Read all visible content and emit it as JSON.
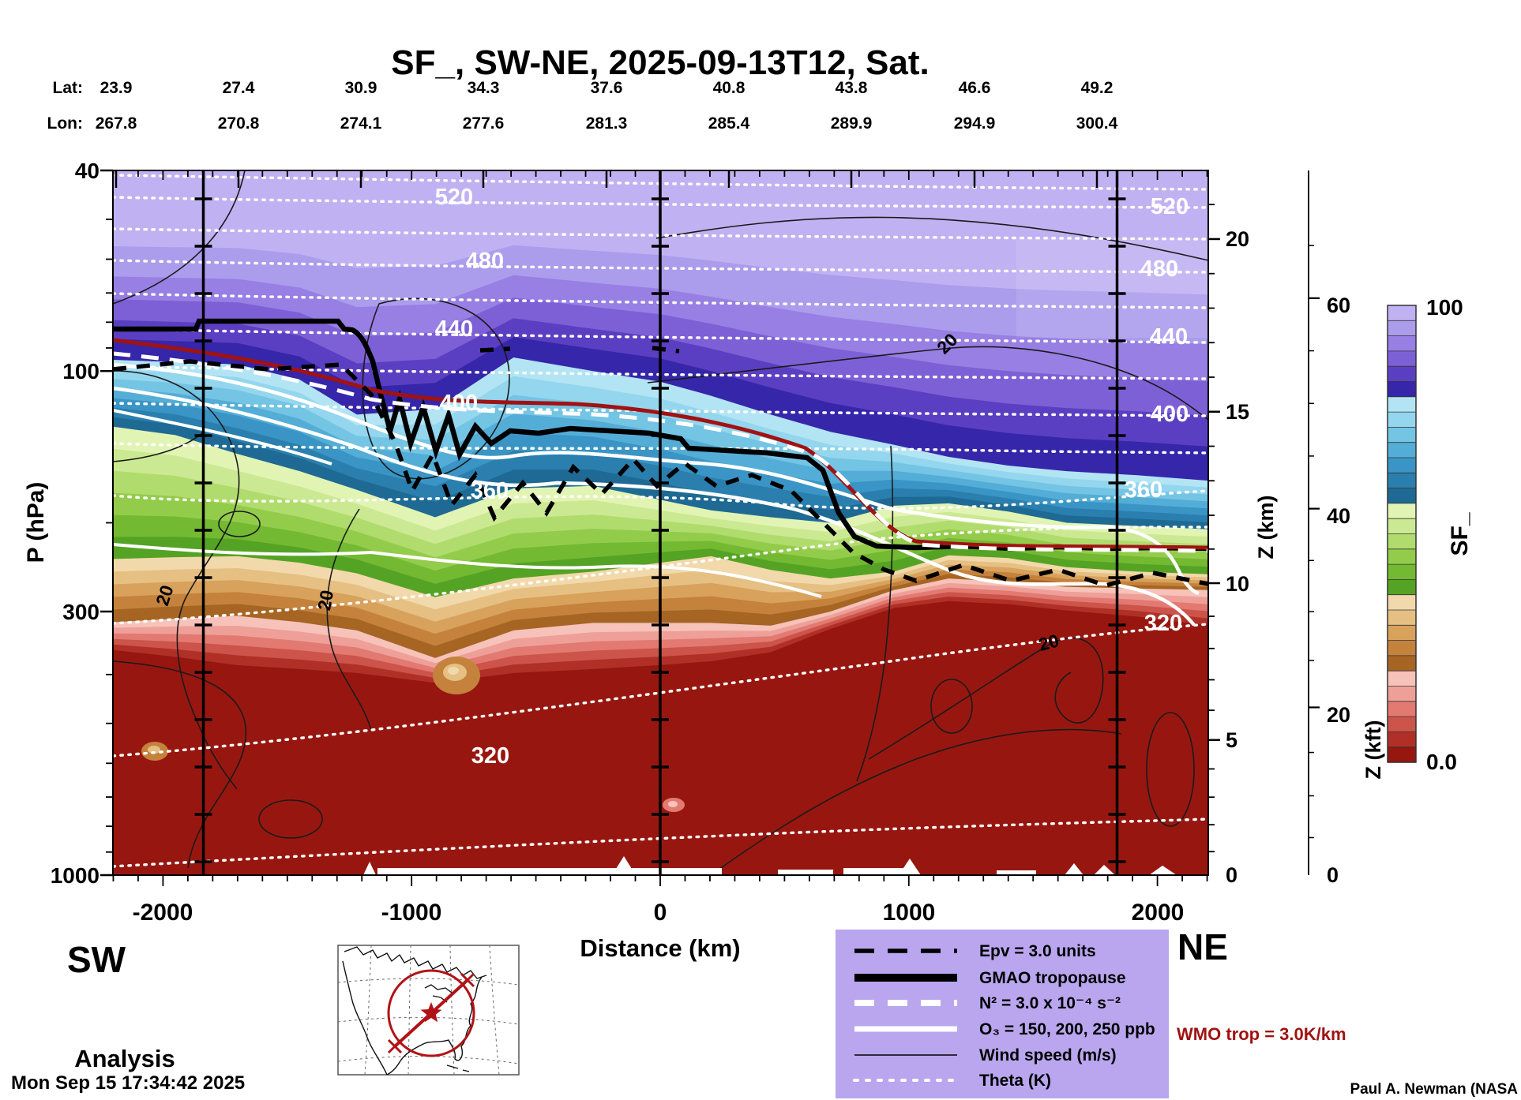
{
  "header": {
    "title": "SF_, SW-NE, 2025-09-13T12, Sat.",
    "lat_label": "Lat:",
    "lon_label": "Lon:",
    "lat": [
      "23.9",
      "27.4",
      "30.9",
      "34.3",
      "37.6",
      "40.8",
      "43.8",
      "46.6",
      "49.2"
    ],
    "lon": [
      "267.8",
      "270.8",
      "274.1",
      "277.6",
      "281.3",
      "285.4",
      "289.9",
      "294.9",
      "300.4"
    ]
  },
  "axes": {
    "pressure": {
      "label": "P (hPa)",
      "ticks": [
        "40",
        "100",
        "300",
        "1000"
      ]
    },
    "distance": {
      "label": "Distance (km)",
      "ticks": [
        "-2000",
        "-1000",
        "0",
        "1000",
        "2000"
      ]
    },
    "z_km": {
      "label": "Z (km)",
      "ticks": [
        "20",
        "15",
        "10",
        "5",
        "0"
      ]
    },
    "z_kft": {
      "label": "Z (kft)",
      "ticks": [
        "60",
        "40",
        "20",
        "0"
      ]
    }
  },
  "colorbar": {
    "label": "SF_",
    "max_label": "100",
    "min_label": "0.0",
    "colors": [
      "#c0b2f2",
      "#ac9cec",
      "#977fe4",
      "#7e60d6",
      "#5b3fc2",
      "#3626aa",
      "#b2e4f4",
      "#93d6ee",
      "#74c4e4",
      "#54add6",
      "#3a95c6",
      "#2a7fae",
      "#1e6a94",
      "#e2f4b4",
      "#cbe992",
      "#b0dc6e",
      "#93cc4b",
      "#73b932",
      "#55a324",
      "#f2d9ac",
      "#e6c083",
      "#d8a25c",
      "#c4823c",
      "#a66523",
      "#f6c2ba",
      "#eea098",
      "#e27a72",
      "#cc544a",
      "#b03028",
      "#971710"
    ]
  },
  "legend": {
    "items": [
      {
        "label": "Epv = 3.0 units"
      },
      {
        "label": "GMAO tropopause"
      },
      {
        "label": "N² = 3.0 x 10⁻⁴ s⁻²"
      },
      {
        "label": "O₃ = 150, 200, 250 ppb"
      },
      {
        "label": "Wind speed (m/s)"
      },
      {
        "label": "Theta (K)"
      }
    ]
  },
  "annotations": {
    "sw": "SW",
    "ne": "NE",
    "analysis": "Analysis",
    "wmo_trop": "WMO trop = 3.0K/km",
    "timestamp": "Mon Sep 15 17:34:42 2025",
    "credit": "Paul A. Newman (NASA"
  },
  "contour_labels": {
    "theta_left": [
      "520",
      "480",
      "440",
      "400",
      "360",
      "320"
    ],
    "theta_right": [
      "520",
      "480",
      "440",
      "400",
      "360",
      "320"
    ],
    "wind": [
      "20",
      "20",
      "20",
      "20"
    ]
  },
  "chart_data": {
    "type": "heatmap",
    "title": "SF_, SW-NE, 2025-09-13T12, Sat.",
    "field": "SF_",
    "run_type": "Analysis",
    "valid_time": "2025-09-13T12",
    "orientation": {
      "left": "SW",
      "right": "NE"
    },
    "x": {
      "label": "Distance (km)",
      "min": -2200,
      "max": 2205,
      "ticks": [
        -2000,
        -1000,
        0,
        1000,
        2000
      ],
      "waypoint_lines_km": [
        -1838,
        0,
        1838
      ]
    },
    "y": {
      "label": "P (hPa)",
      "scale": "log",
      "min": 40,
      "max": 1000,
      "ticks": [
        40,
        100,
        300,
        1000
      ]
    },
    "y2": {
      "label": "Z (km)",
      "ticks": [
        20,
        15,
        10,
        5,
        0
      ]
    },
    "y3": {
      "label": "Z (kft)",
      "ticks": [
        60,
        40,
        20,
        0
      ]
    },
    "colorbar": {
      "label": "SF_",
      "min": 0.0,
      "max": 100
    },
    "track": {
      "lat": [
        23.9,
        27.4,
        30.9,
        34.3,
        37.6,
        40.8,
        43.8,
        46.6,
        49.2
      ],
      "lon": [
        267.8,
        270.8,
        274.1,
        277.6,
        281.3,
        285.4,
        289.9,
        294.9,
        300.4
      ]
    },
    "overlays": [
      {
        "name": "Theta (K)",
        "style": "white dotted",
        "levels_labeled": [
          320,
          360,
          400,
          440,
          480,
          520
        ],
        "levels_drawn": [
          310,
          320,
          340,
          360,
          380,
          400,
          420,
          440,
          460,
          480,
          500,
          520,
          540
        ]
      },
      {
        "name": "Wind speed (m/s)",
        "style": "thin black solid",
        "levels_labeled": [
          20
        ]
      },
      {
        "name": "Epv",
        "value": "3.0 units",
        "style": "black dashed"
      },
      {
        "name": "GMAO tropopause",
        "style": "thick black solid"
      },
      {
        "name": "N2",
        "value": "3.0 x 10^-4 s^-2",
        "style": "thick white dashed"
      },
      {
        "name": "O3",
        "value": "150, 200, 250 ppb",
        "style": "thick white solid"
      },
      {
        "name": "WMO tropopause",
        "value": "3.0 K/km",
        "style": "dark red solid"
      }
    ],
    "sample_km": [
      -2200,
      -1950,
      -1700,
      -1450,
      -1220,
      -905,
      -590,
      -270,
      0,
      205,
      445,
      685,
      940,
      1160,
      1400,
      1635,
      1920,
      2205
    ],
    "sf_boundaries": {
      "sf80_hPa": [
        95,
        96,
        97,
        104,
        122,
        119,
        94,
        100,
        105,
        112,
        122,
        132,
        140,
        148,
        154,
        158,
        161,
        165
      ],
      "sf55_hPa": [
        129,
        134,
        146,
        158,
        172,
        195,
        171,
        169,
        180,
        189,
        195,
        200,
        185,
        183,
        190,
        200,
        203,
        206
      ],
      "sf35_hPa": [
        236,
        234,
        233,
        240,
        252,
        281,
        258,
        250,
        240,
        233,
        248,
        258,
        250,
        232,
        235,
        245,
        250,
        253
      ],
      "sf18_hPa": [
        315,
        310,
        306,
        315,
        327,
        371,
        327,
        316,
        316,
        316,
        320,
        300,
        272,
        258,
        262,
        268,
        270,
        272
      ],
      "sf5_hPa": [
        367,
        382,
        401,
        407,
        413,
        425,
        413,
        407,
        398,
        390,
        370,
        330,
        300,
        292,
        296,
        305,
        315,
        330
      ]
    },
    "tropopause_gmao_hPa": [
      [
        -2200,
        82
      ],
      [
        -1300,
        82
      ],
      [
        -1050,
        90
      ],
      [
        -900,
        118
      ],
      [
        -700,
        130
      ],
      [
        -500,
        134
      ],
      [
        -200,
        133
      ],
      [
        0,
        136
      ],
      [
        200,
        138
      ],
      [
        400,
        142
      ],
      [
        600,
        150
      ],
      [
        700,
        170
      ],
      [
        800,
        200
      ],
      [
        900,
        220
      ],
      [
        1200,
        224
      ],
      [
        2205,
        225
      ]
    ],
    "wind_contour_ms": 20
  }
}
